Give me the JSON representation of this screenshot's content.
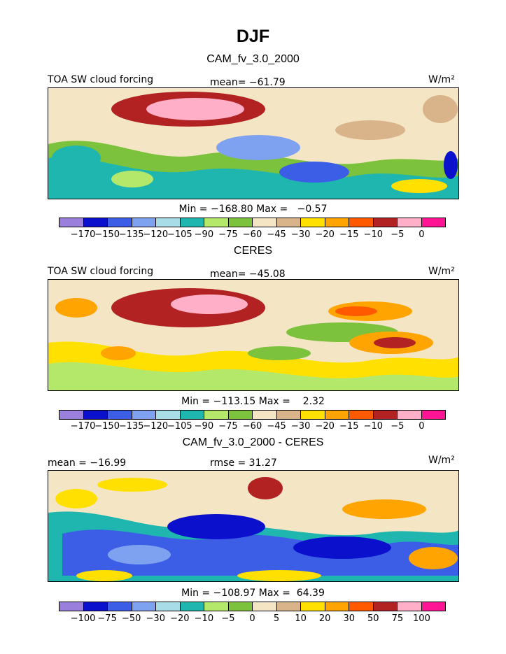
{
  "title": "DJF",
  "colors": {
    "fill": [
      "#9b7fdc",
      "#0a10cc",
      "#3c5ee6",
      "#7fa2f0",
      "#a8dde8",
      "#1fb6b0",
      "#b3e86a",
      "#7cc23c",
      "#f4e6c4",
      "#d9b48a",
      "#ffe000",
      "#ffa400",
      "#ff5a00",
      "#b22222",
      "#ffb0c8",
      "#ff1493"
    ]
  },
  "panels": [
    {
      "subtitle": "CAM_fv_3.0_2000",
      "left_label": "TOA SW cloud forcing",
      "center_label": "mean= −61.79",
      "units": "W/m²",
      "minmax": "Min = −168.80 Max =   −0.57",
      "colorbar_ticks": [
        "−170",
        "−150",
        "−135",
        "−120",
        "−105",
        "−90",
        "−75",
        "−60",
        "−45",
        "−30",
        "−20",
        "−15",
        "−10",
        "−5",
        "0"
      ]
    },
    {
      "subtitle": "CERES",
      "left_label": "TOA SW cloud forcing",
      "center_label": "mean= −45.08",
      "units": "W/m²",
      "minmax": "Min = −113.15 Max =    2.32",
      "colorbar_ticks": [
        "−170",
        "−150",
        "−135",
        "−120",
        "−105",
        "−90",
        "−75",
        "−60",
        "−45",
        "−30",
        "−20",
        "−15",
        "−10",
        "−5",
        "0"
      ]
    },
    {
      "subtitle": "CAM_fv_3.0_2000 - CERES",
      "left_label": "mean = −16.99",
      "center_label": "rmse =  31.27",
      "units": "W/m²",
      "minmax": "Min = −108.97 Max =  64.39",
      "colorbar_ticks": [
        "−100",
        "−75",
        "−50",
        "−30",
        "−20",
        "−10",
        "−5",
        "0",
        "5",
        "10",
        "20",
        "30",
        "50",
        "75",
        "100"
      ]
    }
  ]
}
